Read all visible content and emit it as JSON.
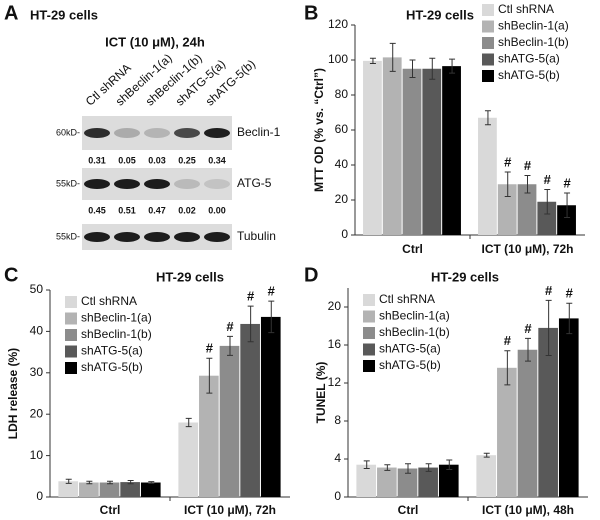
{
  "blot": {
    "panel": "A",
    "title": "HT-29 cells",
    "subtitle": "ICT (10 μM), 24h",
    "lanes": [
      "Ctl shRNA",
      "shBeclin-1(a)",
      "shBeclin-1(b)",
      "shATG-5(a)",
      "shATG-5(b)"
    ],
    "rows": [
      {
        "marker": "60kD-",
        "label": "Beclin-1",
        "quant": [
          "0.31",
          "0.05",
          "0.03",
          "0.25",
          "0.34"
        ]
      },
      {
        "marker": "55kD-",
        "label": "ATG-5",
        "quant": [
          "0.45",
          "0.51",
          "0.47",
          "0.02",
          "0.00"
        ]
      },
      {
        "marker": "55kD-",
        "label": "Tubulin"
      }
    ]
  },
  "chart_data": [
    {
      "type": "bar",
      "panel": "B",
      "title": "HT-29 cells",
      "ylabel": "MTT OD (% vs. “Ctrl”)",
      "categories": [
        "Ctrl",
        "ICT (10 μM), 72h"
      ],
      "ylim": [
        0,
        120
      ],
      "yticks": [
        0,
        20,
        40,
        60,
        80,
        100,
        120
      ],
      "legend": "upper right",
      "grid": false,
      "series": [
        {
          "name": "Ctl shRNA",
          "color": "#d9d9d9",
          "values": [
            99.5,
            67
          ],
          "errors": [
            1.5,
            4
          ],
          "markers": [
            null,
            null
          ]
        },
        {
          "name": "shBeclin-1(a)",
          "color": "#b3b3b3",
          "values": [
            101.5,
            29
          ],
          "errors": [
            8,
            7
          ],
          "markers": [
            null,
            "#"
          ]
        },
        {
          "name": "shBeclin-1(b)",
          "color": "#8c8c8c",
          "values": [
            95,
            29
          ],
          "errors": [
            5,
            5
          ],
          "markers": [
            null,
            "#"
          ]
        },
        {
          "name": "shATG-5(a)",
          "color": "#595959",
          "values": [
            95,
            19
          ],
          "errors": [
            6,
            7
          ],
          "markers": [
            null,
            "#"
          ]
        },
        {
          "name": "shATG-5(b)",
          "color": "#000000",
          "values": [
            96.5,
            17
          ],
          "errors": [
            4,
            7
          ],
          "markers": [
            null,
            "#"
          ]
        }
      ]
    },
    {
      "type": "bar",
      "panel": "C",
      "title": "HT-29 cells",
      "ylabel": "LDH release (%)",
      "categories": [
        "Ctrl",
        "ICT (10 μM), 72h"
      ],
      "ylim": [
        0,
        50
      ],
      "yticks": [
        0,
        10,
        20,
        30,
        40,
        50
      ],
      "legend": "upper left",
      "grid": false,
      "series": [
        {
          "name": "Ctl shRNA",
          "color": "#d9d9d9",
          "values": [
            3.8,
            18
          ],
          "errors": [
            0.5,
            1
          ],
          "markers": [
            null,
            null
          ]
        },
        {
          "name": "shBeclin-1(a)",
          "color": "#b3b3b3",
          "values": [
            3.5,
            29.3
          ],
          "errors": [
            0.3,
            4.2
          ],
          "markers": [
            null,
            "#"
          ]
        },
        {
          "name": "shBeclin-1(b)",
          "color": "#8c8c8c",
          "values": [
            3.5,
            36.5
          ],
          "errors": [
            0.3,
            2.3
          ],
          "markers": [
            null,
            "#"
          ]
        },
        {
          "name": "shATG-5(a)",
          "color": "#595959",
          "values": [
            3.6,
            41.8
          ],
          "errors": [
            0.4,
            4.3
          ],
          "markers": [
            null,
            "#"
          ]
        },
        {
          "name": "shATG-5(b)",
          "color": "#000000",
          "values": [
            3.5,
            43.5
          ],
          "errors": [
            0.2,
            3.8
          ],
          "markers": [
            null,
            "#"
          ]
        }
      ]
    },
    {
      "type": "bar",
      "panel": "D",
      "title": "HT-29 cells",
      "ylabel": "TUNEL (%)",
      "categories": [
        "Ctrl",
        "ICT (10 μM), 48h"
      ],
      "ylim": [
        0,
        22
      ],
      "yticks": [
        0,
        4,
        8,
        12,
        16,
        20
      ],
      "legend": "upper left",
      "grid": false,
      "series": [
        {
          "name": "Ctl shRNA",
          "color": "#d9d9d9",
          "values": [
            3.4,
            4.4
          ],
          "errors": [
            0.4,
            0.2
          ],
          "markers": [
            null,
            null
          ]
        },
        {
          "name": "shBeclin-1(a)",
          "color": "#b3b3b3",
          "values": [
            3.1,
            13.6
          ],
          "errors": [
            0.3,
            1.8
          ],
          "markers": [
            null,
            "#"
          ]
        },
        {
          "name": "shBeclin-1(b)",
          "color": "#8c8c8c",
          "values": [
            3.0,
            15.5
          ],
          "errors": [
            0.5,
            1.2
          ],
          "markers": [
            null,
            "#"
          ]
        },
        {
          "name": "shATG-5(a)",
          "color": "#595959",
          "values": [
            3.1,
            17.8
          ],
          "errors": [
            0.4,
            2.9
          ],
          "markers": [
            null,
            "#"
          ]
        },
        {
          "name": "shATG-5(b)",
          "color": "#000000",
          "values": [
            3.4,
            18.8
          ],
          "errors": [
            0.5,
            1.6
          ],
          "markers": [
            null,
            "#"
          ]
        }
      ]
    }
  ]
}
